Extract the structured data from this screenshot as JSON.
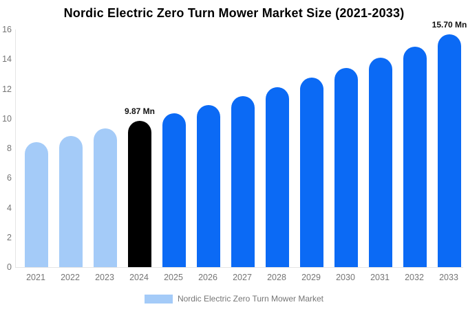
{
  "chart_data": {
    "type": "bar",
    "title": "Nordic Electric Zero Turn Mower Market Size (2021-2033)",
    "categories": [
      "2021",
      "2022",
      "2023",
      "2024",
      "2025",
      "2026",
      "2027",
      "2028",
      "2029",
      "2030",
      "2031",
      "2032",
      "2033"
    ],
    "values": [
      8.4,
      8.85,
      9.35,
      9.87,
      10.35,
      10.9,
      11.5,
      12.1,
      12.75,
      13.4,
      14.1,
      14.85,
      15.7
    ],
    "unit": "Mn",
    "xlabel": "",
    "ylabel": "",
    "ylim": [
      0,
      16
    ],
    "yticks": [
      0,
      2,
      4,
      6,
      8,
      10,
      12,
      14,
      16
    ],
    "grid": false,
    "bar_roles": [
      "historical",
      "historical",
      "historical",
      "highlight",
      "forecast",
      "forecast",
      "forecast",
      "forecast",
      "forecast",
      "forecast",
      "forecast",
      "forecast",
      "forecast"
    ],
    "colors": {
      "historical": "#a4cbf8",
      "highlight": "#000000",
      "forecast": "#0b6af5"
    },
    "axis": {
      "tick_color": "#757575",
      "line_color": "#e4e4e4"
    },
    "annotations": [
      {
        "category": "2024",
        "text": "9.87 Mn"
      },
      {
        "category": "2033",
        "text": "15.70 Mn"
      }
    ],
    "legend": {
      "position": "bottom",
      "label": "Nordic Electric Zero Turn Mower Market",
      "swatch_color": "#a4cbf8"
    }
  }
}
